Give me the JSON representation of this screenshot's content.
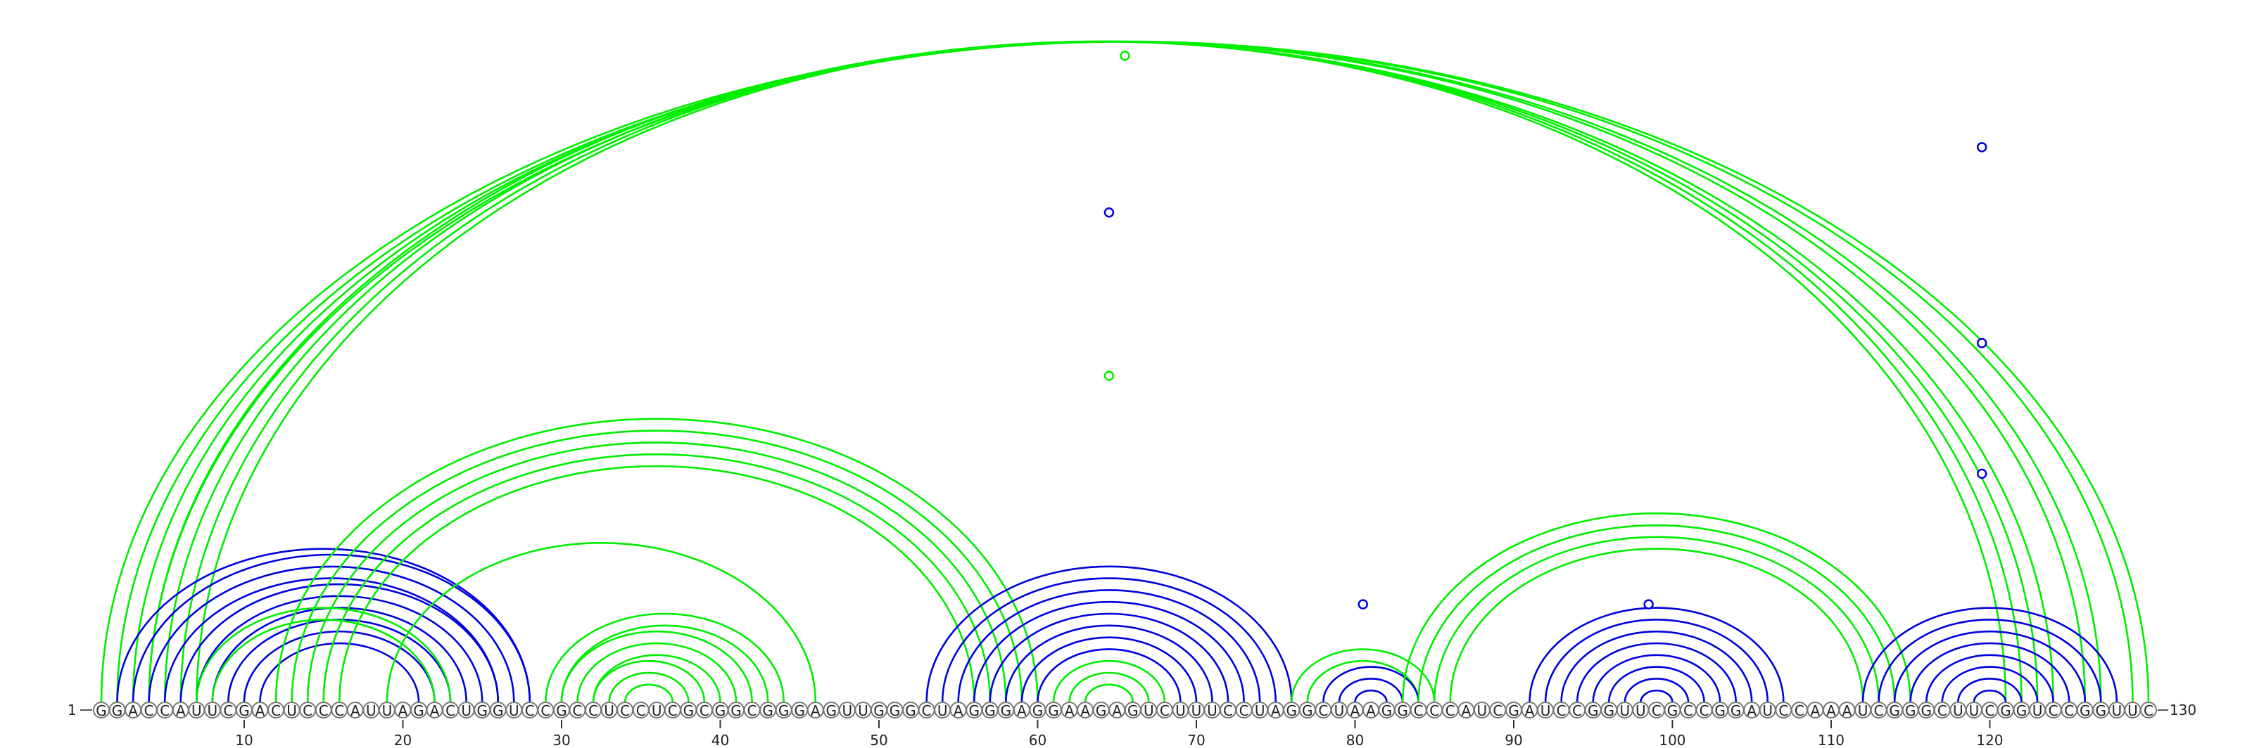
{
  "sequence": "GGACCAUUCGACUCCCAUUAGACUGGUCCGCCUCCUCGCGGCGGGAGUUGGGCUAGGGAGGAAGAGUCUUUCCUAGGCUAAGGCCCAUCGAUCCGGUUCGCCGGAUCCAAAUCGGGCUUCGGUCCGGUUC",
  "start_label": "1",
  "end_label": "130",
  "ticks": [
    "10",
    "20",
    "30",
    "40",
    "50",
    "60",
    "70",
    "80",
    "90",
    "100",
    "110",
    "120"
  ],
  "colors": {
    "blue": "#0000dd",
    "green": "#00ee00"
  },
  "pairs": [
    {
      "i": 1,
      "j": 130,
      "c": "green"
    },
    {
      "i": 2,
      "j": 129,
      "c": "green"
    },
    {
      "i": 3,
      "j": 127,
      "c": "green"
    },
    {
      "i": 4,
      "j": 126,
      "c": "green"
    },
    {
      "i": 4,
      "j": 124,
      "c": "green"
    },
    {
      "i": 5,
      "j": 123,
      "c": "green"
    },
    {
      "i": 6,
      "j": 122,
      "c": "green"
    },
    {
      "i": 7,
      "j": 121,
      "c": "green"
    },
    {
      "i": 2,
      "j": 28,
      "c": "blue"
    },
    {
      "i": 3,
      "j": 28,
      "c": "blue"
    },
    {
      "i": 4,
      "j": 27,
      "c": "blue"
    },
    {
      "i": 5,
      "j": 26,
      "c": "blue"
    },
    {
      "i": 6,
      "j": 26,
      "c": "blue"
    },
    {
      "i": 7,
      "j": 25,
      "c": "blue"
    },
    {
      "i": 8,
      "j": 24,
      "c": "blue"
    },
    {
      "i": 9,
      "j": 23,
      "c": "blue"
    },
    {
      "i": 10,
      "j": 22,
      "c": "blue"
    },
    {
      "i": 11,
      "j": 21,
      "c": "blue"
    },
    {
      "i": 7,
      "j": 23,
      "c": "green"
    },
    {
      "i": 8,
      "j": 22,
      "c": "green"
    },
    {
      "i": 12,
      "j": 60,
      "c": "green"
    },
    {
      "i": 13,
      "j": 59,
      "c": "green"
    },
    {
      "i": 14,
      "j": 58,
      "c": "green"
    },
    {
      "i": 15,
      "j": 57,
      "c": "green"
    },
    {
      "i": 16,
      "j": 56,
      "c": "green"
    },
    {
      "i": 19,
      "j": 46,
      "c": "green"
    },
    {
      "i": 29,
      "j": 44,
      "c": "green"
    },
    {
      "i": 30,
      "j": 43,
      "c": "green"
    },
    {
      "i": 30,
      "j": 42,
      "c": "green"
    },
    {
      "i": 31,
      "j": 41,
      "c": "green"
    },
    {
      "i": 32,
      "j": 40,
      "c": "green"
    },
    {
      "i": 32,
      "j": 39,
      "c": "green"
    },
    {
      "i": 33,
      "j": 38,
      "c": "green"
    },
    {
      "i": 34,
      "j": 37,
      "c": "green"
    },
    {
      "i": 53,
      "j": 76,
      "c": "blue"
    },
    {
      "i": 54,
      "j": 75,
      "c": "blue"
    },
    {
      "i": 55,
      "j": 74,
      "c": "blue"
    },
    {
      "i": 56,
      "j": 73,
      "c": "blue"
    },
    {
      "i": 57,
      "j": 72,
      "c": "blue"
    },
    {
      "i": 58,
      "j": 71,
      "c": "blue"
    },
    {
      "i": 59,
      "j": 70,
      "c": "blue"
    },
    {
      "i": 60,
      "j": 69,
      "c": "blue"
    },
    {
      "i": 61,
      "j": 68,
      "c": "green"
    },
    {
      "i": 62,
      "j": 67,
      "c": "green"
    },
    {
      "i": 63,
      "j": 66,
      "c": "green"
    },
    {
      "i": 76,
      "j": 85,
      "c": "green"
    },
    {
      "i": 77,
      "j": 84,
      "c": "green"
    },
    {
      "i": 78,
      "j": 84,
      "c": "blue"
    },
    {
      "i": 79,
      "j": 83,
      "c": "blue"
    },
    {
      "i": 80,
      "j": 82,
      "c": "blue"
    },
    {
      "i": 83,
      "j": 115,
      "c": "green"
    },
    {
      "i": 84,
      "j": 114,
      "c": "green"
    },
    {
      "i": 85,
      "j": 113,
      "c": "green"
    },
    {
      "i": 86,
      "j": 112,
      "c": "green"
    },
    {
      "i": 91,
      "j": 107,
      "c": "blue"
    },
    {
      "i": 92,
      "j": 106,
      "c": "blue"
    },
    {
      "i": 93,
      "j": 105,
      "c": "blue"
    },
    {
      "i": 94,
      "j": 104,
      "c": "blue"
    },
    {
      "i": 95,
      "j": 103,
      "c": "blue"
    },
    {
      "i": 96,
      "j": 102,
      "c": "blue"
    },
    {
      "i": 97,
      "j": 101,
      "c": "blue"
    },
    {
      "i": 98,
      "j": 100,
      "c": "blue"
    },
    {
      "i": 112,
      "j": 128,
      "c": "blue"
    },
    {
      "i": 113,
      "j": 127,
      "c": "blue"
    },
    {
      "i": 114,
      "j": 126,
      "c": "blue"
    },
    {
      "i": 115,
      "j": 125,
      "c": "blue"
    },
    {
      "i": 116,
      "j": 124,
      "c": "blue"
    },
    {
      "i": 117,
      "j": 123,
      "c": "blue"
    },
    {
      "i": 118,
      "j": 122,
      "c": "blue"
    },
    {
      "i": 119,
      "j": 121,
      "c": "blue"
    }
  ],
  "markers": [
    {
      "pos": 65.5,
      "h": 0.99,
      "c": "green"
    },
    {
      "pos": 64.5,
      "h": 0.75,
      "c": "blue"
    },
    {
      "pos": 64.5,
      "h": 0.5,
      "c": "green"
    },
    {
      "pos": 80.5,
      "h": 0.15,
      "c": "blue"
    },
    {
      "pos": 98.5,
      "h": 0.15,
      "c": "blue"
    },
    {
      "pos": 119.5,
      "h": 0.85,
      "c": "blue"
    },
    {
      "pos": 119.5,
      "h": 0.55,
      "c": "blue"
    },
    {
      "pos": 119.5,
      "h": 0.35,
      "c": "blue"
    }
  ]
}
